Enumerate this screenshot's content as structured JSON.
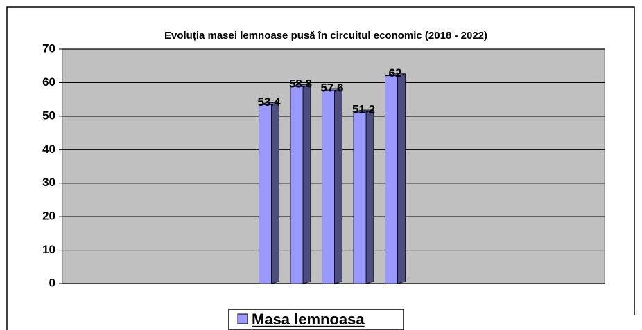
{
  "chart_data": {
    "type": "bar",
    "title": "Evoluția masei lemnoase pusă în circuitul economic (2018 - 2022)",
    "categories": [
      null,
      null,
      null,
      null,
      null
    ],
    "series": [
      {
        "name": "Masa lemnoasa",
        "color": "#9999ff",
        "values": [
          53.4,
          58.8,
          57.6,
          51.2,
          62
        ]
      }
    ],
    "ylim": [
      0,
      70
    ],
    "yticks": [
      0,
      10,
      20,
      30,
      40,
      50,
      60,
      70
    ],
    "grid": true,
    "legend": "bottom"
  }
}
